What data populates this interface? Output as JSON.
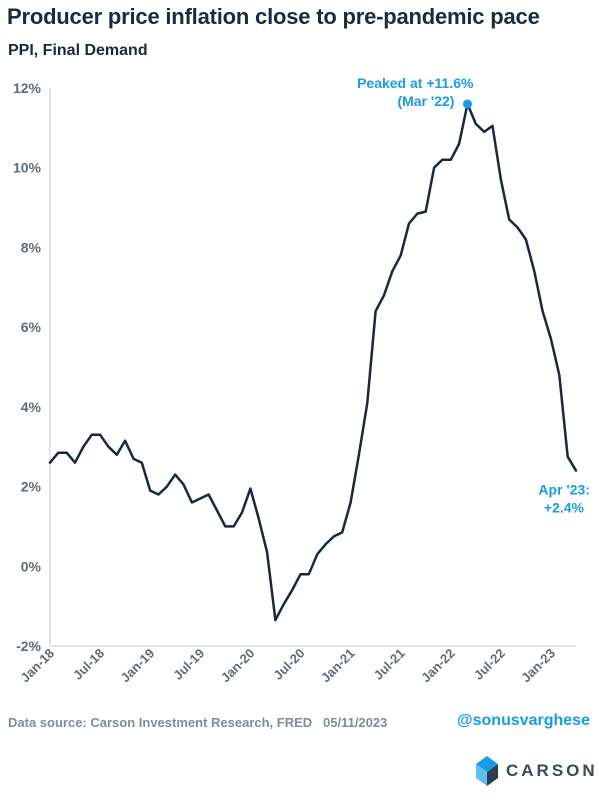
{
  "title": "Producer price inflation close to pre-pandemic pace",
  "subtitle": "PPI, Final Demand",
  "footer": {
    "source": "Data source: Carson Investment Research, FRED",
    "date": "05/11/2023",
    "handle": "@sonusvarghese",
    "brand": "CARSON"
  },
  "chart_data": {
    "type": "line",
    "title": "Producer price inflation close to pre-pandemic pace",
    "subtitle": "PPI, Final Demand",
    "ylim": [
      -2,
      12
    ],
    "y_ticks": [
      "-2%",
      "0%",
      "2%",
      "4%",
      "6%",
      "8%",
      "10%",
      "12%"
    ],
    "y_tick_values": [
      -2,
      0,
      2,
      4,
      6,
      8,
      10,
      12
    ],
    "x_ticks": [
      "Jan-18",
      "Jul-18",
      "Jan-19",
      "Jul-19",
      "Jan-20",
      "Jul-20",
      "Jan-21",
      "Jul-21",
      "Jan-22",
      "Jul-22",
      "Jan-23"
    ],
    "grid": false,
    "line_color": "#15293f",
    "annotation_color": "#1a9be8",
    "series": [
      {
        "start": "2018-01",
        "end": "2023-04",
        "values": [
          2.6,
          2.85,
          2.85,
          2.6,
          3.0,
          3.3,
          3.3,
          3.0,
          2.8,
          3.15,
          2.7,
          2.6,
          1.9,
          1.8,
          2.0,
          2.3,
          2.05,
          1.6,
          1.7,
          1.8,
          1.4,
          1.0,
          1.0,
          1.35,
          1.95,
          1.2,
          0.35,
          -1.35,
          -0.95,
          -0.6,
          -0.2,
          -0.2,
          0.3,
          0.55,
          0.75,
          0.85,
          1.6,
          2.8,
          4.1,
          6.4,
          6.8,
          7.4,
          7.8,
          8.6,
          8.85,
          8.9,
          10.0,
          10.2,
          10.2,
          10.6,
          11.6,
          11.1,
          10.9,
          11.05,
          9.7,
          8.7,
          8.5,
          8.2,
          7.4,
          6.4,
          5.7,
          4.8,
          2.75,
          2.4
        ]
      }
    ],
    "annotations": [
      {
        "label": "Peaked at +11.6%",
        "label2": "(Mar '22)",
        "date": "2022-03",
        "value": 11.6
      },
      {
        "label": "Apr '23:",
        "label2": "+2.4%",
        "date": "2023-04",
        "value": 2.4
      }
    ]
  }
}
